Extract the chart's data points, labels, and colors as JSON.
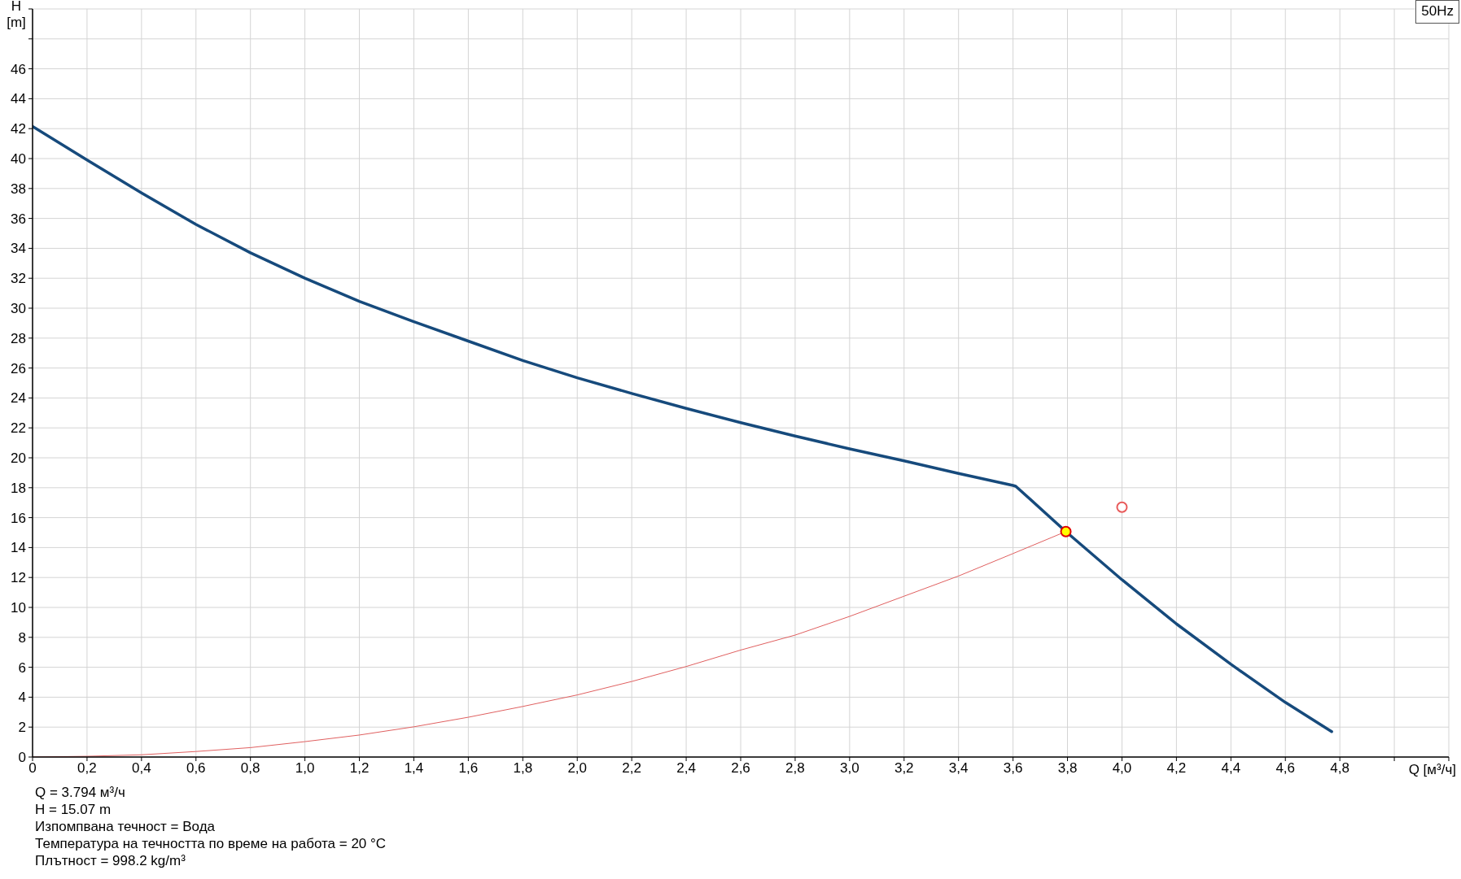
{
  "chart_data": {
    "type": "line",
    "title": "50Hz",
    "xlabel": "Q [м³/ч]",
    "ylabel": "H [m]",
    "xlim": [
      0,
      5.2
    ],
    "xticks": [
      0,
      {
        "value": 0.2,
        "label": "0,2"
      },
      {
        "value": 0.4,
        "label": "0,4"
      },
      {
        "value": 0.6,
        "label": "0,6"
      },
      {
        "value": 0.8,
        "label": "0,8"
      },
      {
        "value": 1.0,
        "label": "1,0"
      },
      {
        "value": 1.2,
        "label": "1,2"
      },
      {
        "value": 1.4,
        "label": "1,4"
      },
      {
        "value": 1.6,
        "label": "1,6"
      },
      {
        "value": 1.8,
        "label": "1,8"
      },
      {
        "value": 2.0,
        "label": "2,0"
      },
      {
        "value": 2.2,
        "label": "2,2"
      },
      {
        "value": 2.4,
        "label": "2,4"
      },
      {
        "value": 2.6,
        "label": "2,6"
      },
      {
        "value": 2.8,
        "label": "2,8"
      },
      {
        "value": 3.0,
        "label": "3,0"
      },
      {
        "value": 3.2,
        "label": "3,2"
      },
      {
        "value": 3.4,
        "label": "3,4"
      },
      {
        "value": 3.6,
        "label": "3,6"
      },
      {
        "value": 3.8,
        "label": "3,8"
      },
      {
        "value": 4.0,
        "label": "4,0"
      },
      {
        "value": 4.2,
        "label": "4,2"
      },
      {
        "value": 4.4,
        "label": "4,4"
      },
      {
        "value": 4.6,
        "label": "4,6"
      },
      {
        "value": 4.8,
        "label": "4,8"
      },
      {
        "value": 5.0,
        "label": null
      },
      {
        "value": 5.2,
        "label": null
      }
    ],
    "ylim": [
      0,
      50
    ],
    "yticks": [
      0,
      2,
      4,
      6,
      8,
      10,
      12,
      14,
      16,
      18,
      20,
      22,
      24,
      26,
      28,
      30,
      32,
      34,
      36,
      38,
      40,
      42,
      44,
      46,
      {
        "value": 48,
        "label": null
      },
      {
        "value": 50,
        "label": null
      }
    ],
    "grid": true,
    "marker": "none",
    "series": [
      {
        "type": "line",
        "color": "#164a7c",
        "x": [
          0,
          0.2,
          0.4,
          0.6,
          0.8,
          1.0,
          1.2,
          1.4,
          1.6,
          1.8,
          2.0,
          2.2,
          2.4,
          2.6,
          2.8,
          3.0,
          3.2,
          3.4,
          3.6,
          3.61,
          3.794,
          4.0,
          4.2,
          4.4,
          4.6,
          4.77
        ],
        "values": [
          42.15,
          39.9,
          37.7,
          35.6,
          33.7,
          32.0,
          30.45,
          29.1,
          27.8,
          26.5,
          25.35,
          24.3,
          23.3,
          22.35,
          21.45,
          20.6,
          19.8,
          18.95,
          18.15,
          18.1,
          15.07,
          11.85,
          8.9,
          6.2,
          3.65,
          1.7
        ]
      },
      {
        "type": "line",
        "color": "#e06060",
        "x": [
          0,
          0.2,
          0.4,
          0.6,
          0.8,
          1.0,
          1.2,
          1.4,
          1.6,
          1.8,
          2.0,
          2.2,
          2.4,
          2.6,
          2.8,
          3.0,
          3.2,
          3.4,
          3.6,
          3.794
        ],
        "values": [
          0,
          0.05,
          0.15,
          0.37,
          0.63,
          1.03,
          1.47,
          2.02,
          2.66,
          3.38,
          4.15,
          5.05,
          6.05,
          7.15,
          8.15,
          9.4,
          10.75,
          12.1,
          13.6,
          15.07
        ]
      },
      {
        "type": "scatter",
        "marker": "circle",
        "color": "#e00000",
        "colors": [
          "#ffff00"
        ],
        "x": [
          3.794
        ],
        "values": [
          15.07
        ]
      },
      {
        "type": "scatter",
        "marker": "circle",
        "color": "#e85a5a",
        "x": [
          4.0
        ],
        "values": [
          16.7
        ]
      }
    ],
    "annotations": [
      "Q = 3.794 м³/ч",
      "H = 15.07 m",
      "Изпомпвана течност = Вода",
      "Температура на течността по време на работа = 20 °C",
      "Плътност = 998.2 kg/m³"
    ]
  }
}
